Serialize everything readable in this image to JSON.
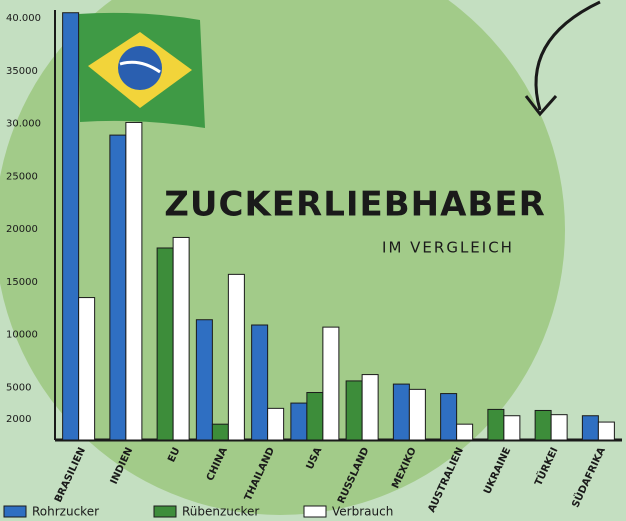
{
  "chart_data": {
    "type": "bar",
    "title": "ZUCKERLIEBHABER",
    "subtitle": "IM VERGLEICH",
    "categories": [
      "BRASILIEN",
      "INDIEN",
      "EU",
      "CHINA",
      "THAILAND",
      "USA",
      "RUSSLAND",
      "MEXIKO",
      "AUSTRALIEN",
      "UKRAINE",
      "TÜRKEI",
      "SÜDAFRIKA"
    ],
    "series": [
      {
        "name": "Rohrzucker",
        "color": "#2f6fc2",
        "values": [
          40500,
          28900,
          null,
          11400,
          10900,
          3500,
          null,
          5300,
          4400,
          null,
          null,
          2300
        ]
      },
      {
        "name": "Rübenzucker",
        "color": "#3d8d3a",
        "values": [
          null,
          null,
          18200,
          1500,
          null,
          4500,
          5600,
          null,
          null,
          2900,
          2800,
          null
        ]
      },
      {
        "name": "Verbrauch",
        "color": "#ffffff",
        "values": [
          13500,
          30100,
          19200,
          15700,
          3000,
          10700,
          6200,
          4800,
          1500,
          2300,
          2400,
          1700
        ]
      }
    ],
    "ylim": [
      0,
      40000
    ],
    "yticks": [
      {
        "value": 40000,
        "label": "40.000"
      },
      35000,
      {
        "value": 30000,
        "label": "30.000"
      },
      25000,
      20000,
      15000,
      10000,
      5000,
      2000
    ],
    "legend": "bottom"
  }
}
